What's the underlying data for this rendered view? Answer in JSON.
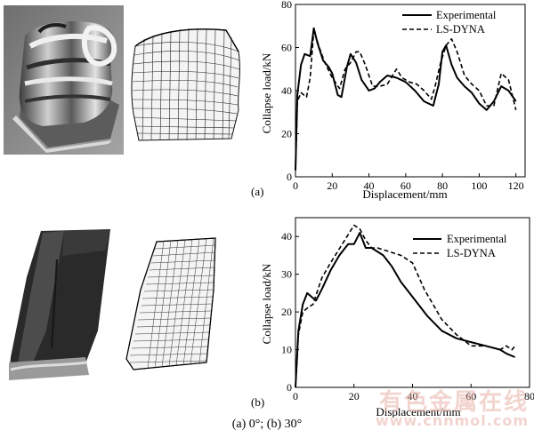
{
  "caption": "(a) 0°; (b) 30°",
  "watermark": {
    "text": "有色金属在线",
    "url": "www.cnnmol.com"
  },
  "chart_data": [
    {
      "panel": "(a)",
      "type": "line",
      "xlabel": "Displacement/mm",
      "ylabel": "Collapse load/kN",
      "xlim": [
        0,
        125
      ],
      "ylim": [
        0,
        80
      ],
      "xticks": [
        0,
        20,
        40,
        60,
        80,
        100,
        120
      ],
      "yticks": [
        0,
        20,
        40,
        60,
        80
      ],
      "legend_position": "top-right",
      "series": [
        {
          "name": "Experimental",
          "style": "solid",
          "x": [
            0,
            1,
            3,
            5,
            8,
            10,
            12,
            15,
            18,
            20,
            23,
            25,
            28,
            30,
            33,
            36,
            40,
            43,
            46,
            50,
            55,
            60,
            65,
            70,
            75,
            78,
            80,
            82,
            85,
            88,
            92,
            96,
            100,
            104,
            108,
            112,
            116,
            120
          ],
          "y": [
            3,
            38,
            52,
            57,
            56,
            69,
            62,
            54,
            51,
            48,
            38,
            37,
            51,
            57,
            53,
            45,
            40,
            41,
            44,
            47,
            46,
            44,
            40,
            35,
            33,
            43,
            58,
            61,
            52,
            46,
            42,
            39,
            34,
            31,
            35,
            42,
            40,
            35
          ]
        },
        {
          "name": "LS-DYNA",
          "style": "dashed",
          "x": [
            0,
            1,
            3,
            6,
            8,
            10,
            13,
            16,
            20,
            24,
            27,
            30,
            33,
            35,
            38,
            42,
            46,
            50,
            55,
            58,
            62,
            66,
            70,
            74,
            76,
            79,
            82,
            85,
            88,
            92,
            96,
            100,
            104,
            108,
            112,
            116,
            120
          ],
          "y": [
            3,
            35,
            39,
            37,
            46,
            68,
            60,
            53,
            46,
            41,
            50,
            53,
            58,
            58,
            52,
            42,
            42,
            43,
            50,
            46,
            44,
            43,
            40,
            36,
            42,
            53,
            61,
            64,
            58,
            47,
            43,
            40,
            33,
            33,
            48,
            45,
            31
          ]
        }
      ]
    },
    {
      "panel": "(b)",
      "type": "line",
      "xlabel": "Displacement/mm",
      "ylabel": "Collapse load/kN",
      "xlim": [
        0,
        80
      ],
      "ylim": [
        0,
        45
      ],
      "xticks": [
        0,
        20,
        40,
        60,
        80
      ],
      "yticks": [
        0,
        10,
        20,
        30,
        40
      ],
      "legend_position": "top-right",
      "series": [
        {
          "name": "Experimental",
          "style": "solid",
          "x": [
            0,
            1,
            2.5,
            4,
            5.5,
            7,
            9,
            12,
            15,
            18,
            20,
            22,
            24,
            26,
            30,
            33,
            36,
            40,
            45,
            50,
            55,
            60,
            65,
            70,
            72,
            75
          ],
          "y": [
            0,
            15,
            22,
            25,
            24,
            23,
            26,
            31,
            35,
            38,
            38,
            41,
            37,
            37,
            35,
            32,
            28,
            24,
            19,
            15,
            13,
            12,
            11,
            10,
            9,
            8
          ]
        },
        {
          "name": "LS-DYNA",
          "style": "dashed",
          "x": [
            0,
            1,
            2.5,
            4,
            6,
            9,
            12,
            16,
            20,
            22,
            24,
            26,
            28,
            32,
            36,
            40,
            44,
            50,
            55,
            60,
            65,
            70,
            72,
            74,
            75
          ],
          "y": [
            0,
            14,
            20,
            21,
            22,
            29,
            33,
            38,
            43,
            42,
            39,
            37,
            37,
            36,
            35,
            33,
            26,
            18,
            14,
            11,
            11,
            10,
            11,
            10,
            11
          ]
        }
      ]
    }
  ]
}
